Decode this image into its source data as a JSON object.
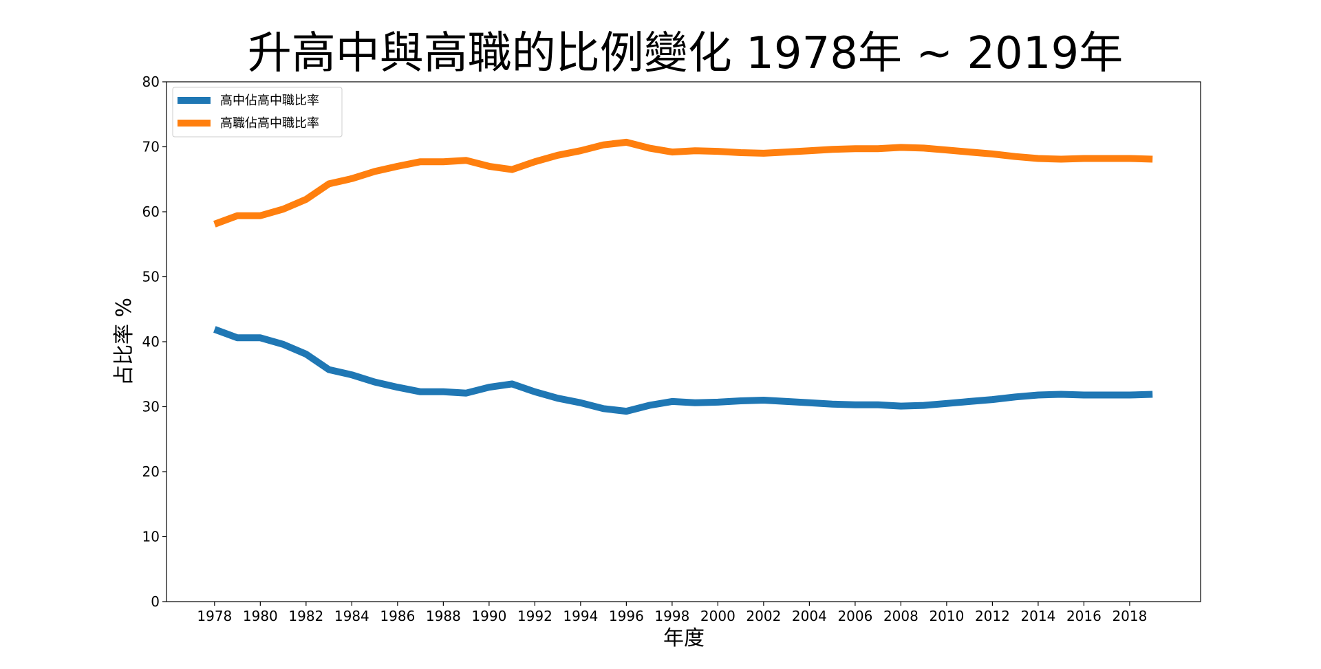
{
  "chart_data": {
    "type": "line",
    "title": "升高中與高職的比例變化 1978年 ~ 2019年",
    "xlabel": "年度",
    "ylabel": "占比率 %",
    "xlim": [
      1975.9,
      2021.1
    ],
    "ylim": [
      0,
      80
    ],
    "xticks": [
      1978,
      1980,
      1982,
      1984,
      1986,
      1988,
      1990,
      1992,
      1994,
      1996,
      1998,
      2000,
      2002,
      2004,
      2006,
      2008,
      2010,
      2012,
      2014,
      2016,
      2018
    ],
    "yticks": [
      0,
      10,
      20,
      30,
      40,
      50,
      60,
      70,
      80
    ],
    "grid": false,
    "legend": "top-left",
    "x": [
      1978,
      1979,
      1980,
      1981,
      1982,
      1983,
      1984,
      1985,
      1986,
      1987,
      1988,
      1989,
      1990,
      1991,
      1992,
      1993,
      1994,
      1995,
      1996,
      1997,
      1998,
      1999,
      2000,
      2001,
      2002,
      2003,
      2004,
      2005,
      2006,
      2007,
      2008,
      2009,
      2010,
      2011,
      2012,
      2013,
      2014,
      2015,
      2016,
      2017,
      2018,
      2019
    ],
    "series": [
      {
        "name": "高中佔高中職比率",
        "color": "#1f77b4",
        "values": [
          41.9,
          40.6,
          40.6,
          39.6,
          38.1,
          35.7,
          34.9,
          33.8,
          33.0,
          32.3,
          32.3,
          32.1,
          33.0,
          33.5,
          32.3,
          31.3,
          30.6,
          29.7,
          29.3,
          30.2,
          30.8,
          30.6,
          30.7,
          30.9,
          31.0,
          30.8,
          30.6,
          30.4,
          30.3,
          30.3,
          30.1,
          30.2,
          30.5,
          30.8,
          31.1,
          31.5,
          31.8,
          31.9,
          31.8,
          31.8,
          31.8,
          31.9
        ]
      },
      {
        "name": "高職佔高中職比率",
        "color": "#ff7f0e",
        "values": [
          58.1,
          59.4,
          59.4,
          60.4,
          61.9,
          64.3,
          65.1,
          66.2,
          67.0,
          67.7,
          67.7,
          67.9,
          67.0,
          66.5,
          67.7,
          68.7,
          69.4,
          70.3,
          70.7,
          69.8,
          69.2,
          69.4,
          69.3,
          69.1,
          69.0,
          69.2,
          69.4,
          69.6,
          69.7,
          69.7,
          69.9,
          69.8,
          69.5,
          69.2,
          68.9,
          68.5,
          68.2,
          68.1,
          68.2,
          68.2,
          68.2,
          68.1
        ]
      }
    ]
  }
}
